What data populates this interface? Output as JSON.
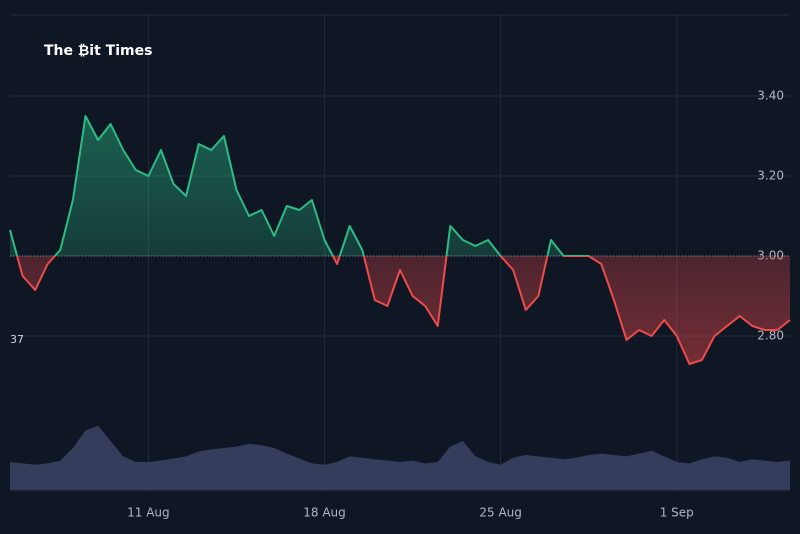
{
  "chart_data": {
    "type": "baseline",
    "watermark": "The ₿it Times",
    "left_label": "37",
    "categories": [
      null,
      null,
      null,
      null,
      null,
      null,
      null,
      null,
      null,
      null,
      null,
      "11 Aug",
      null,
      null,
      null,
      null,
      null,
      null,
      null,
      null,
      null,
      null,
      null,
      null,
      null,
      "18 Aug",
      null,
      null,
      null,
      null,
      null,
      null,
      null,
      null,
      null,
      null,
      null,
      null,
      null,
      "25 Aug",
      null,
      null,
      null,
      null,
      null,
      null,
      null,
      null,
      null,
      null,
      null,
      null,
      null,
      "1 Sep",
      null,
      null,
      null,
      null,
      null,
      null,
      null,
      null,
      null
    ],
    "values": [
      3.065,
      2.95,
      2.915,
      2.98,
      3.015,
      3.14,
      3.35,
      3.29,
      3.33,
      3.265,
      3.215,
      3.2,
      3.265,
      3.18,
      3.15,
      3.28,
      3.265,
      3.3,
      3.165,
      3.1,
      3.115,
      3.05,
      3.125,
      3.115,
      3.14,
      3.04,
      2.98,
      3.075,
      3.015,
      2.89,
      2.875,
      2.965,
      2.9,
      2.875,
      2.825,
      3.075,
      3.04,
      3.025,
      3.04,
      3.0,
      2.965,
      2.865,
      2.9,
      3.04,
      3.0,
      3.0,
      3.0,
      2.98,
      2.89,
      2.79,
      2.815,
      2.8,
      2.84,
      2.8,
      2.73,
      2.74,
      2.8,
      2.825,
      2.85,
      2.825,
      2.815,
      2.815,
      2.84
    ],
    "volume": [
      40,
      38,
      36,
      38,
      42,
      60,
      85,
      92,
      70,
      48,
      40,
      40,
      42,
      45,
      48,
      55,
      58,
      60,
      62,
      66,
      64,
      60,
      52,
      45,
      38,
      36,
      40,
      48,
      46,
      44,
      42,
      40,
      42,
      38,
      40,
      62,
      70,
      48,
      40,
      36,
      46,
      50,
      48,
      46,
      44,
      46,
      50,
      52,
      50,
      48,
      52,
      56,
      48,
      40,
      38,
      44,
      48,
      46,
      40,
      44,
      42,
      40,
      42
    ],
    "volume_color": "#3b4566",
    "vlim": [
      0,
      100
    ],
    "baseline": 3.0,
    "up_color": "#2bbd84",
    "down_color": "#ef4b4b",
    "ylim": [
      2.6,
      3.6
    ],
    "yticks": [
      {
        "value": 2.8,
        "label": "2.80"
      },
      {
        "value": 3.0,
        "label": "3.00"
      },
      {
        "value": 3.2,
        "label": "3.20"
      },
      {
        "value": 3.4,
        "label": "3.40"
      }
    ],
    "grid": true
  }
}
